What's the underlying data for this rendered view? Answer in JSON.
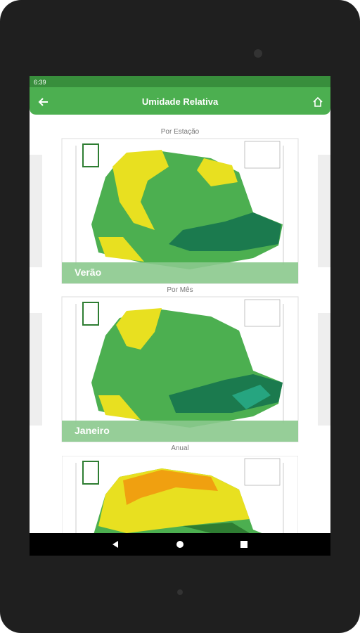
{
  "status_bar": {
    "time": "6:39"
  },
  "app_bar": {
    "title": "Umidade Relativa"
  },
  "sections": [
    {
      "heading": "Por Estação",
      "caption": "Verão"
    },
    {
      "heading": "Por Mês",
      "caption": "Janeiro"
    },
    {
      "heading": "Anual"
    }
  ]
}
